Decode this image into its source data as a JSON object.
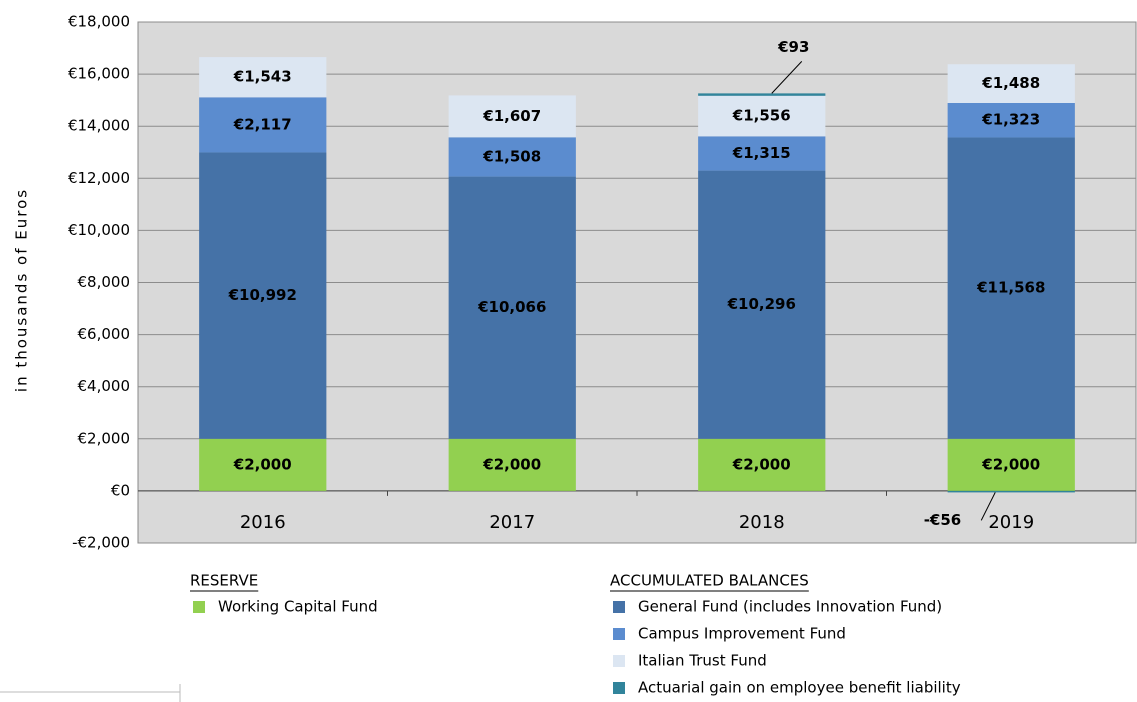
{
  "chart_data": {
    "type": "stacked_bar",
    "ylabel": "in thousands of Euros",
    "categories": [
      "2016",
      "2017",
      "2018",
      "2019"
    ],
    "series": [
      {
        "name": "Working Capital Fund",
        "color": "#92d050",
        "values": [
          2000,
          2000,
          2000,
          2000
        ],
        "value_labels": [
          "€2,000",
          "€2,000",
          "€2,000",
          "€2,000"
        ]
      },
      {
        "name": "General Fund (includes Innovation Fund)",
        "color": "#4572a7",
        "values": [
          10992,
          10066,
          10296,
          11568
        ],
        "value_labels": [
          "€10,992",
          "€10,066",
          "€10,296",
          "€11,568"
        ]
      },
      {
        "name": "Campus Improvement Fund",
        "color": "#5b8ccf",
        "values": [
          2117,
          1508,
          1315,
          1323
        ],
        "value_labels": [
          "€2,117",
          "€1,508",
          "€1,315",
          "€1,323"
        ]
      },
      {
        "name": "Italian Trust Fund",
        "color": "#dce6f2",
        "values": [
          1543,
          1607,
          1556,
          1488
        ],
        "value_labels": [
          "€1,543",
          "€1,607",
          "€1,556",
          "€1,488"
        ]
      },
      {
        "name": "Actuarial gain on employee benefit liability",
        "color": "#31849b",
        "values": [
          null,
          null,
          93,
          -56
        ],
        "value_labels": [
          null,
          null,
          "€93",
          "-€56"
        ]
      }
    ],
    "legend_groups": [
      {
        "title": "RESERVE",
        "series": [
          0
        ]
      },
      {
        "title": "ACCUMULATED BALANCES",
        "series": [
          1,
          2,
          3,
          4
        ]
      }
    ],
    "ylim": [
      -2000,
      18000
    ],
    "yticks": [
      {
        "value": -2000,
        "label": "-€2,000"
      },
      {
        "value": 0,
        "label": "€0"
      },
      {
        "value": 2000,
        "label": "€2,000"
      },
      {
        "value": 4000,
        "label": "€4,000"
      },
      {
        "value": 6000,
        "label": "€6,000"
      },
      {
        "value": 8000,
        "label": "€8,000"
      },
      {
        "value": 10000,
        "label": "€10,000"
      },
      {
        "value": 12000,
        "label": "€12,000"
      },
      {
        "value": 14000,
        "label": "€14,000"
      },
      {
        "value": 16000,
        "label": "€16,000"
      },
      {
        "value": 18000,
        "label": "€18,000"
      }
    ],
    "grid": true
  }
}
